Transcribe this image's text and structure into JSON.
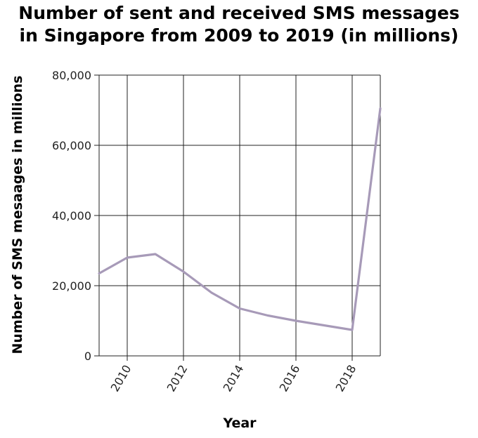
{
  "chart_data": {
    "type": "line",
    "title_lines": [
      "Number of sent and received SMS messages",
      "in Singapore from 2009 to 2019 (in millions)"
    ],
    "xlabel": "Year",
    "ylabel": "Number of SMS mesaages in millions",
    "xlim": [
      2009,
      2019
    ],
    "ylim": [
      0,
      80000
    ],
    "x_ticks": [
      2010,
      2012,
      2014,
      2016,
      2018
    ],
    "x_tick_labels": [
      "2010",
      "2012",
      "2014",
      "2016",
      "2018"
    ],
    "y_ticks": [
      0,
      20000,
      40000,
      60000,
      80000
    ],
    "y_tick_labels": [
      "0",
      "20,000",
      "40,000",
      "60,000",
      "80,000"
    ],
    "grid": true,
    "series": [
      {
        "color": "#a79ab8",
        "x": [
          2009,
          2010,
          2011,
          2012,
          2013,
          2014,
          2015,
          2016,
          2017,
          2018,
          2019
        ],
        "values": [
          23500,
          28000,
          29000,
          24000,
          18000,
          13500,
          11500,
          10000,
          8700,
          7400,
          70500
        ]
      }
    ]
  }
}
